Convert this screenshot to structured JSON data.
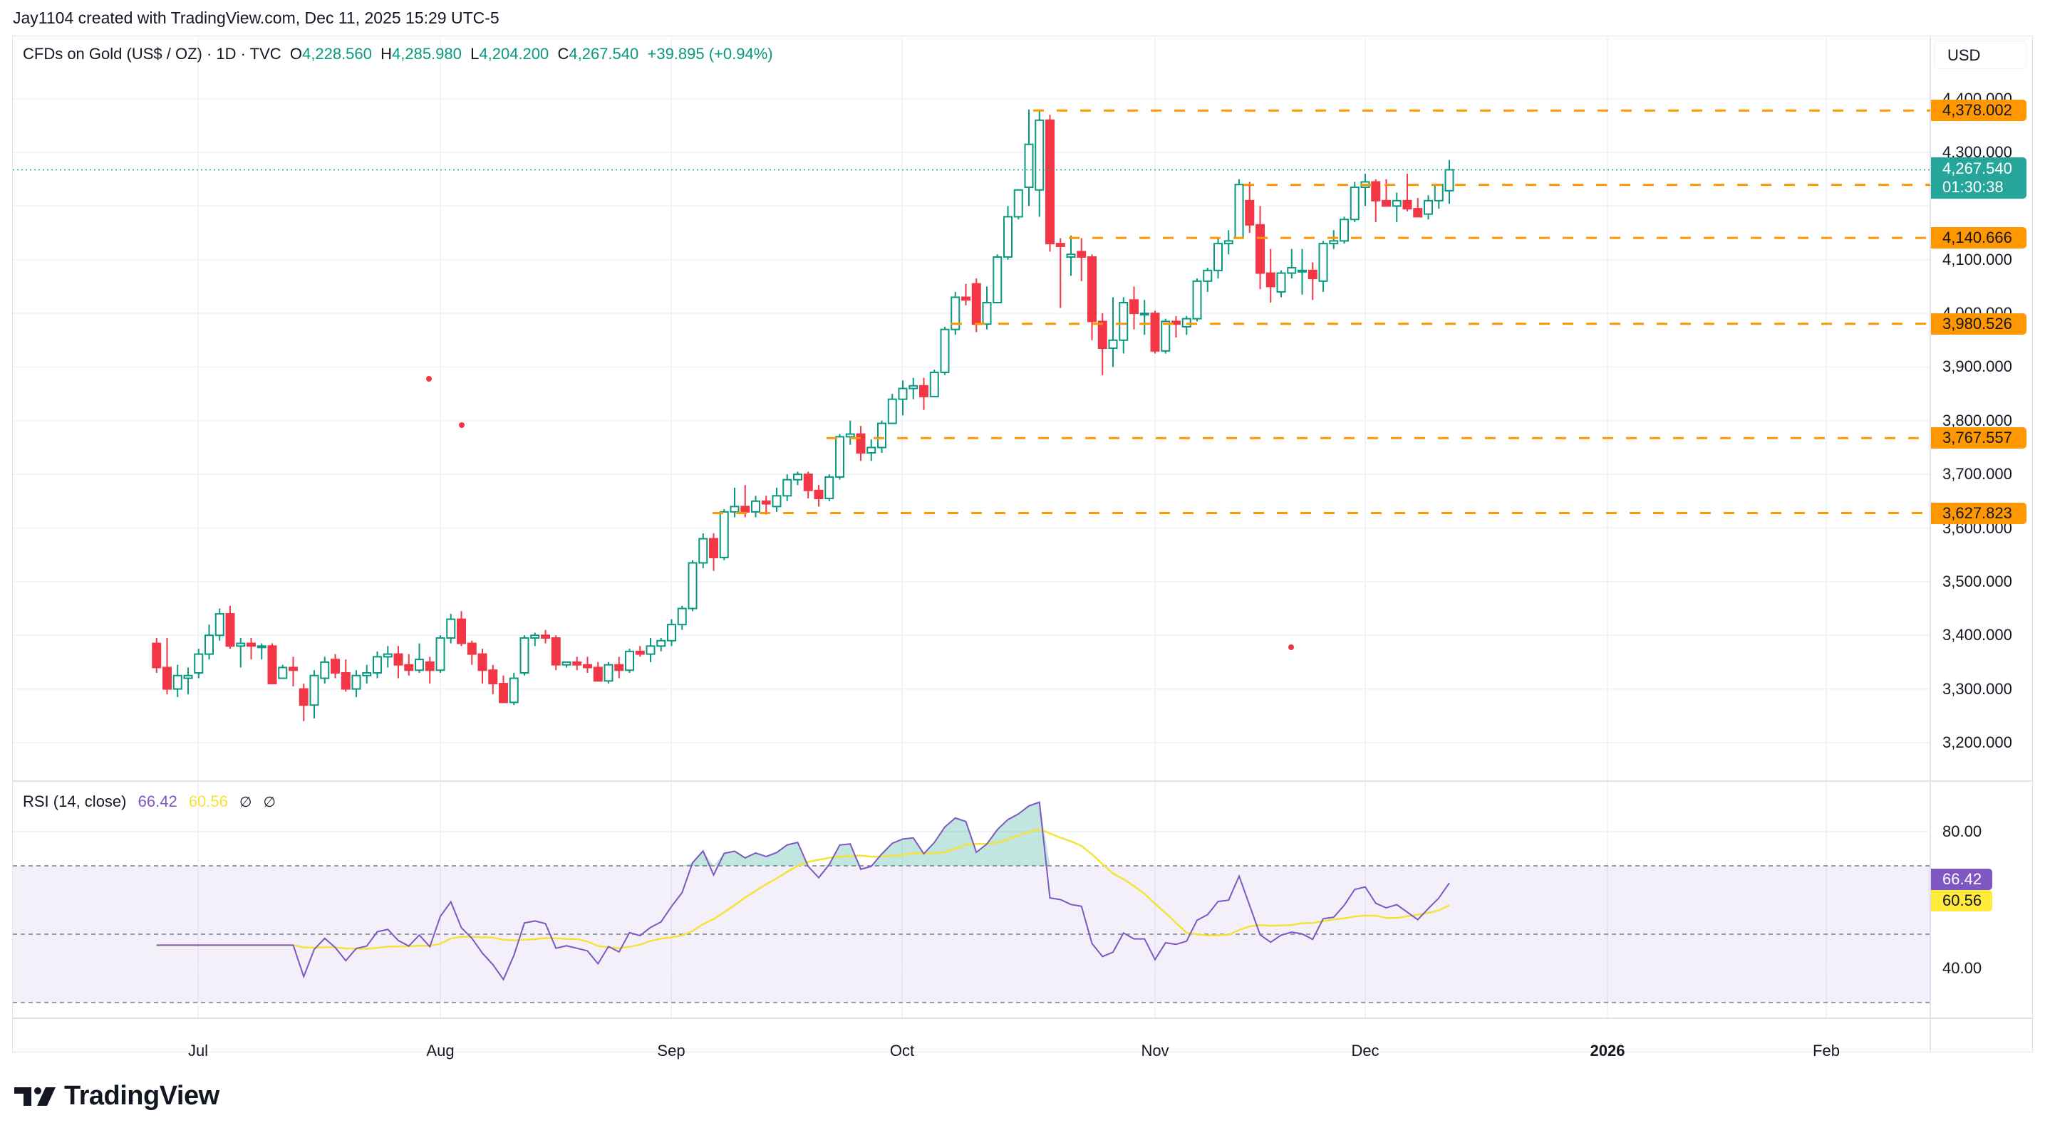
{
  "credit": "Jay1104 created with TradingView.com, Dec 11, 2025 15:29 UTC-5",
  "legend": {
    "symbol": "CFDs on Gold (US$ / OZ) · 1D · TVC",
    "o_label": "O",
    "o_value": "4,228.560",
    "h_label": "H",
    "h_value": "4,285.980",
    "l_label": "L",
    "l_value": "4,204.200",
    "c_label": "C",
    "c_value": "4,267.540",
    "change": "+39.895 (+0.94%)"
  },
  "currency": "USD",
  "price_axis": {
    "ticks": [
      "4,400.000",
      "4,300.000",
      "4,100.000",
      "4,000.000",
      "3,900.000",
      "3,800.000",
      "3,700.000",
      "3,600.000",
      "3,500.000",
      "3,400.000",
      "3,300.000",
      "3,200.000"
    ],
    "last_price": "4,267.540",
    "countdown": "01:30:38",
    "levels": [
      "4,378.002",
      "4,239.452",
      "4,140.666",
      "3,980.526",
      "3,767.557",
      "3,627.823"
    ]
  },
  "rsi": {
    "title": "RSI (14, close)",
    "value": "66.42",
    "ma_value": "60.56",
    "na1": "∅",
    "na2": "∅",
    "axis_ticks": [
      "80.00",
      "40.00"
    ]
  },
  "time_axis": [
    "Jul",
    "Aug",
    "Sep",
    "Oct",
    "Nov",
    "Dec",
    "2026",
    "Feb"
  ],
  "brand": "TradingView",
  "colors": {
    "up": "#089981",
    "down": "#f23645",
    "level": "#ff9800",
    "rsi": "#7e57c2",
    "rsi_ma": "#f5e33a",
    "last": "#26a69a"
  },
  "chart_data": {
    "type": "candlestick",
    "title": "CFDs on Gold (US$ / OZ) · 1D · TVC",
    "ylabel": "USD",
    "ylim": [
      3150,
      4450
    ],
    "x_ticks": [
      "Jul",
      "Aug",
      "Sep",
      "Oct",
      "Nov",
      "Dec",
      "2026",
      "Feb"
    ],
    "horizontal_levels": [
      4378.002,
      4239.452,
      4140.666,
      3980.526,
      3767.557,
      3627.823
    ],
    "last": {
      "open": 4228.56,
      "high": 4285.98,
      "low": 4204.2,
      "close": 4267.54,
      "change": 39.895,
      "change_pct": 0.94
    },
    "ohlc": [
      [
        3385,
        3395,
        3330,
        3340
      ],
      [
        3340,
        3395,
        3290,
        3300
      ],
      [
        3300,
        3345,
        3285,
        3325
      ],
      [
        3320,
        3340,
        3290,
        3325
      ],
      [
        3330,
        3375,
        3320,
        3365
      ],
      [
        3365,
        3420,
        3355,
        3400
      ],
      [
        3400,
        3450,
        3390,
        3440
      ],
      [
        3440,
        3455,
        3375,
        3380
      ],
      [
        3380,
        3395,
        3340,
        3385
      ],
      [
        3385,
        3395,
        3355,
        3380
      ],
      [
        3380,
        3385,
        3355,
        3380
      ],
      [
        3380,
        3385,
        3340,
        3310
      ],
      [
        3320,
        3345,
        3320,
        3340
      ],
      [
        3340,
        3360,
        3305,
        3335
      ],
      [
        3300,
        3310,
        3240,
        3270
      ],
      [
        3270,
        3335,
        3245,
        3325
      ],
      [
        3320,
        3360,
        3310,
        3350
      ],
      [
        3355,
        3365,
        3320,
        3330
      ],
      [
        3330,
        3355,
        3295,
        3300
      ],
      [
        3300,
        3335,
        3285,
        3325
      ],
      [
        3325,
        3345,
        3310,
        3330
      ],
      [
        3330,
        3370,
        3320,
        3360
      ],
      [
        3360,
        3380,
        3340,
        3365
      ],
      [
        3365,
        3380,
        3320,
        3345
      ],
      [
        3345,
        3365,
        3325,
        3335
      ],
      [
        3335,
        3385,
        3330,
        3355
      ],
      [
        3350,
        3360,
        3310,
        3335
      ],
      [
        3335,
        3400,
        3330,
        3395
      ],
      [
        3395,
        3440,
        3385,
        3430
      ],
      [
        3430,
        3445,
        3380,
        3385
      ],
      [
        3385,
        3390,
        3345,
        3365
      ],
      [
        3365,
        3375,
        3310,
        3335
      ],
      [
        3335,
        3345,
        3290,
        3310
      ],
      [
        3310,
        3325,
        3275,
        3275
      ],
      [
        3275,
        3330,
        3270,
        3320
      ],
      [
        3330,
        3400,
        3325,
        3395
      ],
      [
        3395,
        3405,
        3380,
        3400
      ],
      [
        3400,
        3410,
        3385,
        3395
      ],
      [
        3395,
        3400,
        3335,
        3345
      ],
      [
        3345,
        3350,
        3340,
        3350
      ],
      [
        3350,
        3360,
        3335,
        3345
      ],
      [
        3345,
        3360,
        3330,
        3340
      ],
      [
        3340,
        3350,
        3315,
        3315
      ],
      [
        3315,
        3350,
        3310,
        3345
      ],
      [
        3345,
        3360,
        3320,
        3335
      ],
      [
        3335,
        3375,
        3330,
        3370
      ],
      [
        3370,
        3380,
        3360,
        3365
      ],
      [
        3365,
        3395,
        3350,
        3380
      ],
      [
        3380,
        3395,
        3370,
        3390
      ],
      [
        3390,
        3430,
        3380,
        3420
      ],
      [
        3420,
        3455,
        3410,
        3450
      ],
      [
        3450,
        3540,
        3445,
        3535
      ],
      [
        3535,
        3590,
        3525,
        3580
      ],
      [
        3580,
        3590,
        3520,
        3545
      ],
      [
        3545,
        3635,
        3540,
        3630
      ],
      [
        3630,
        3675,
        3620,
        3640
      ],
      [
        3640,
        3680,
        3620,
        3630
      ],
      [
        3630,
        3660,
        3620,
        3650
      ],
      [
        3650,
        3660,
        3625,
        3645
      ],
      [
        3640,
        3675,
        3630,
        3660
      ],
      [
        3660,
        3700,
        3650,
        3690
      ],
      [
        3690,
        3705,
        3680,
        3700
      ],
      [
        3700,
        3705,
        3655,
        3670
      ],
      [
        3670,
        3680,
        3640,
        3655
      ],
      [
        3655,
        3700,
        3650,
        3695
      ],
      [
        3695,
        3775,
        3690,
        3770
      ],
      [
        3770,
        3800,
        3755,
        3775
      ],
      [
        3775,
        3790,
        3725,
        3740
      ],
      [
        3740,
        3765,
        3725,
        3750
      ],
      [
        3750,
        3800,
        3740,
        3795
      ],
      [
        3795,
        3850,
        3800,
        3840
      ],
      [
        3840,
        3875,
        3810,
        3860
      ],
      [
        3860,
        3880,
        3840,
        3865
      ],
      [
        3865,
        3880,
        3820,
        3845
      ],
      [
        3845,
        3895,
        3845,
        3890
      ],
      [
        3890,
        3975,
        3885,
        3970
      ],
      [
        3970,
        4040,
        3960,
        4030
      ],
      [
        4030,
        4055,
        4015,
        4025
      ],
      [
        4055,
        4065,
        3965,
        3980
      ],
      [
        3980,
        4050,
        3970,
        4020
      ],
      [
        4020,
        4110,
        4025,
        4105
      ],
      [
        4105,
        4200,
        4100,
        4180
      ],
      [
        4180,
        4230,
        4175,
        4230
      ],
      [
        4235,
        4380,
        4200,
        4315
      ],
      [
        4230,
        4380,
        4180,
        4360
      ],
      [
        4360,
        4370,
        4115,
        4130
      ],
      [
        4130,
        4140,
        4010,
        4125
      ],
      [
        4105,
        4145,
        4070,
        4110
      ],
      [
        4115,
        4140,
        4060,
        4105
      ],
      [
        4105,
        4110,
        3950,
        3985
      ],
      [
        3985,
        4000,
        3885,
        3935
      ],
      [
        3935,
        4030,
        3900,
        3950
      ],
      [
        3950,
        4030,
        3925,
        4020
      ],
      [
        4025,
        4050,
        3970,
        4000
      ],
      [
        4000,
        4025,
        3960,
        4000
      ],
      [
        4000,
        4005,
        3925,
        3930
      ],
      [
        3930,
        3990,
        3925,
        3985
      ],
      [
        3985,
        3995,
        3955,
        3980
      ],
      [
        3975,
        3995,
        3960,
        3990
      ],
      [
        3990,
        4065,
        3985,
        4060
      ],
      [
        4060,
        4085,
        4040,
        4080
      ],
      [
        4080,
        4140,
        4065,
        4130
      ],
      [
        4130,
        4155,
        4110,
        4135
      ],
      [
        4140,
        4250,
        4140,
        4240
      ],
      [
        4210,
        4245,
        4150,
        4165
      ],
      [
        4165,
        4200,
        4045,
        4075
      ],
      [
        4075,
        4120,
        4020,
        4050
      ],
      [
        4040,
        4080,
        4030,
        4075
      ],
      [
        4075,
        4120,
        4065,
        4085
      ],
      [
        4080,
        4120,
        4035,
        4080
      ],
      [
        4080,
        4095,
        4025,
        4065
      ],
      [
        4060,
        4135,
        4040,
        4130
      ],
      [
        4130,
        4155,
        4120,
        4135
      ],
      [
        4135,
        4180,
        4130,
        4175
      ],
      [
        4175,
        4245,
        4170,
        4235
      ],
      [
        4235,
        4260,
        4200,
        4245
      ],
      [
        4245,
        4250,
        4170,
        4210
      ],
      [
        4210,
        4250,
        4200,
        4200
      ],
      [
        4200,
        4225,
        4170,
        4210
      ],
      [
        4210,
        4260,
        4190,
        4195
      ],
      [
        4195,
        4215,
        4180,
        4180
      ],
      [
        4185,
        4220,
        4175,
        4210
      ],
      [
        4210,
        4240,
        4195,
        4240
      ],
      [
        4228.56,
        4285.98,
        4204.2,
        4267.54
      ]
    ],
    "rsi_series": {
      "name": "RSI (14, close)",
      "last": 66.42,
      "ma_last": 60.56,
      "bands": [
        70,
        50,
        30
      ],
      "ylim": [
        25,
        95
      ]
    }
  }
}
